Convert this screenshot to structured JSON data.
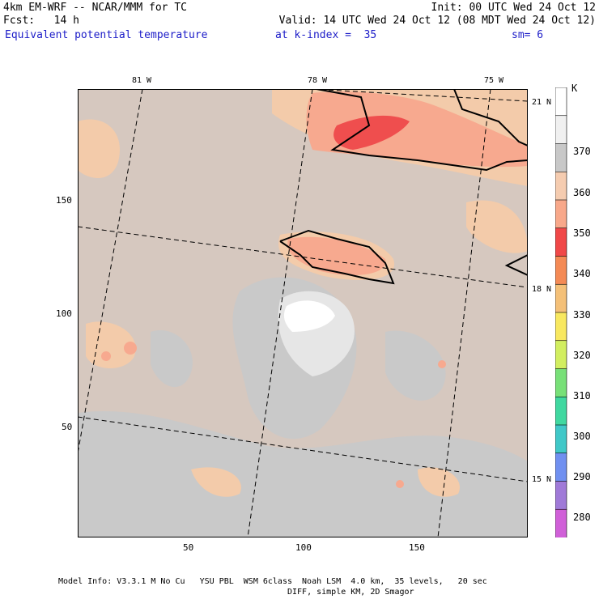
{
  "header": {
    "line1_left": "4km EM-WRF -- NCAR/MMM for TC",
    "line1_right": "Init: 00 UTC Wed 24 Oct 12",
    "line2_left": "Fcst:   14 h",
    "line2_right": "Valid: 14 UTC Wed 24 Oct 12 (08 MDT Wed 24 Oct 12)",
    "line3_field": "Equivalent potential temperature",
    "line3_level": "at k-index =  35",
    "line3_smooth": "sm= 6"
  },
  "map": {
    "lon_labels": [
      "81 W",
      "78 W",
      "75 W"
    ],
    "lat_labels": [
      "21 N",
      "18 N",
      "15 N"
    ],
    "x_ticks": [
      "50",
      "100",
      "150"
    ],
    "y_ticks": [
      "150",
      "100",
      "50"
    ],
    "x_range": [
      0,
      200
    ],
    "y_range": [
      0,
      200
    ],
    "colors": {
      "background": "#d6c8bf",
      "cool": "#c9c9c9",
      "warm": "#f3cbaa",
      "pink": "#f7a98f",
      "red": "#ef4e4e",
      "white_core": "#ffffff",
      "gray_ring": "#e6e6e6"
    }
  },
  "colorbar": {
    "unit": "K",
    "labels": [
      "370",
      "360",
      "350",
      "340",
      "330",
      "320",
      "310",
      "300",
      "290",
      "280"
    ],
    "colors": [
      "#ffffff",
      "#f0f0f0",
      "#c8c8c8",
      "#f5ccb0",
      "#f8a88a",
      "#f04848",
      "#f48a55",
      "#f4c078",
      "#f8e860",
      "#d2ee60",
      "#78e078",
      "#40d8a0",
      "#40c8c8",
      "#7090f0",
      "#a07ad8",
      "#d060d8"
    ]
  },
  "footer": {
    "line1": "Model Info: V3.3.1 M No Cu   YSU PBL  WSM 6class  Noah LSM  4.0 km,  35 levels,   20 sec",
    "line2": "DIFF, simple KM, 2D Smagor"
  }
}
